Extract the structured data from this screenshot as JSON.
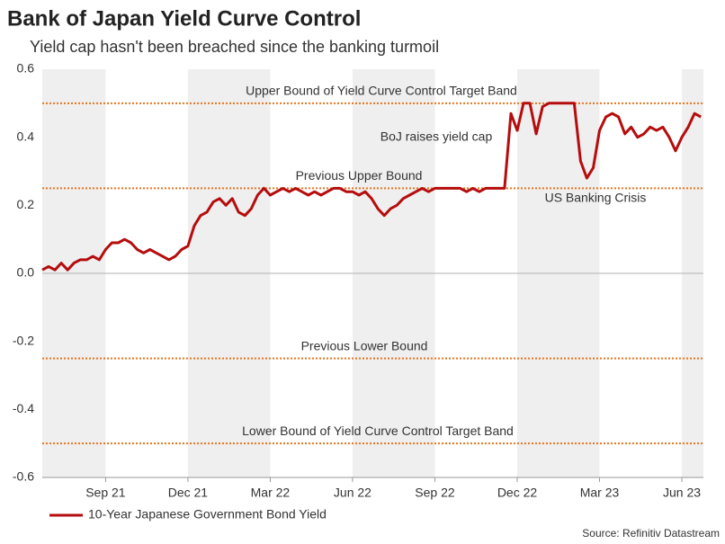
{
  "chart_data": {
    "type": "line",
    "title": "Bank of Japan Yield Curve Control",
    "subtitle": "Yield cap hasn't been breached since the banking turmoil",
    "source": "Source: Refinitiv Datastream",
    "categories": [
      null,
      null,
      null,
      null,
      null,
      null,
      null,
      null,
      null,
      null,
      "Sep 21",
      null,
      null,
      null,
      null,
      null,
      null,
      null,
      null,
      null,
      null,
      null,
      null,
      "Dec 21",
      null,
      null,
      null,
      null,
      null,
      null,
      null,
      null,
      null,
      null,
      null,
      null,
      "Mar 22",
      null,
      null,
      null,
      null,
      null,
      null,
      null,
      null,
      null,
      null,
      null,
      null,
      "Jun 22",
      null,
      null,
      null,
      null,
      null,
      null,
      null,
      null,
      null,
      null,
      null,
      null,
      "Sep 22",
      null,
      null,
      null,
      null,
      null,
      null,
      null,
      null,
      null,
      null,
      null,
      null,
      "Dec 22",
      null,
      null,
      null,
      null,
      null,
      null,
      null,
      null,
      null,
      null,
      null,
      null,
      "Mar 23",
      null,
      null,
      null,
      null,
      null,
      null,
      null,
      null,
      null,
      null,
      null,
      null,
      "Jun 23",
      null,
      null,
      null
    ],
    "series": [
      {
        "name": "10-Year Japanese Government Bond Yield",
        "color": "#b50d0d",
        "values": [
          0.01,
          0.02,
          0.01,
          0.03,
          0.01,
          0.03,
          0.04,
          0.04,
          0.05,
          0.04,
          0.07,
          0.09,
          0.09,
          0.1,
          0.09,
          0.07,
          0.06,
          0.07,
          0.06,
          0.05,
          0.04,
          0.05,
          0.07,
          0.08,
          0.14,
          0.17,
          0.18,
          0.21,
          0.22,
          0.2,
          0.22,
          0.18,
          0.17,
          0.19,
          0.23,
          0.25,
          0.23,
          0.24,
          0.25,
          0.24,
          0.25,
          0.24,
          0.23,
          0.24,
          0.23,
          0.24,
          0.25,
          0.25,
          0.24,
          0.24,
          0.23,
          0.24,
          0.22,
          0.19,
          0.17,
          0.19,
          0.2,
          0.22,
          0.23,
          0.24,
          0.25,
          0.24,
          0.25,
          0.25,
          0.25,
          0.25,
          0.25,
          0.24,
          0.25,
          0.24,
          0.25,
          0.25,
          0.25,
          0.25,
          0.47,
          0.42,
          0.5,
          0.5,
          0.41,
          0.49,
          0.5,
          0.5,
          0.5,
          0.5,
          0.5,
          0.33,
          0.28,
          0.31,
          0.42,
          0.46,
          0.47,
          0.46,
          0.41,
          0.43,
          0.4,
          0.41,
          0.43,
          0.42,
          0.43,
          0.4,
          0.36,
          0.4,
          0.43,
          0.47,
          0.46
        ]
      }
    ],
    "ylim": [
      -0.6,
      0.6
    ],
    "yticks": [
      0.6,
      0.4,
      0.2,
      {
        "value": 0,
        "label": "0.0"
      },
      -0.2,
      -0.4,
      -0.6
    ],
    "reference_lines": [
      {
        "value": 0.5,
        "label": "Upper Bound of Yield Curve Control Target Band",
        "color": "#e8761e"
      },
      {
        "value": 0.25,
        "label": "Previous Upper Bound",
        "color": "#e8761e"
      },
      {
        "value": -0.25,
        "label": "Previous Lower Bound",
        "color": "#e8761e"
      },
      {
        "value": -0.5,
        "label": "Lower Bound of Yield Curve Control Target Band",
        "color": "#e8761e"
      }
    ],
    "annotations": [
      "BoJ raises yield cap",
      "US Banking Crisis"
    ],
    "legend": "bottom-left"
  }
}
